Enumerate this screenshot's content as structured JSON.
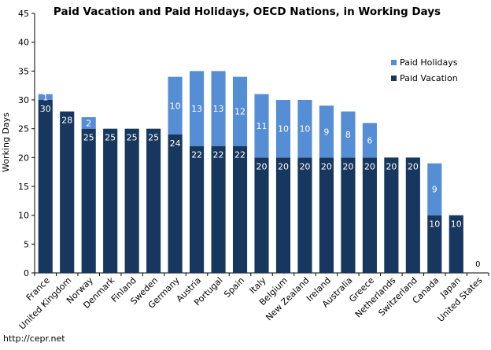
{
  "chart_data": {
    "type": "bar",
    "stacked": true,
    "title": "Paid Vacation and Paid Holidays, OECD Nations, in Working Days",
    "ylabel": "Working Days",
    "xlabel": "",
    "ylim": [
      0,
      45
    ],
    "yticks": [
      0,
      5,
      10,
      15,
      20,
      25,
      30,
      35,
      40,
      45
    ],
    "grid": false,
    "legend_position": "right",
    "categories": [
      "France",
      "United Kingdom",
      "Norway",
      "Denmark",
      "Finland",
      "Sweden",
      "Germany",
      "Austria",
      "Portugal",
      "Spain",
      "Italy",
      "Belgium",
      "New Zealand",
      "Ireland",
      "Australia",
      "Greece",
      "Netherlands",
      "Switzerland",
      "Canada",
      "Japan",
      "United States"
    ],
    "series": [
      {
        "name": "Paid Vacation",
        "color": "#17375e",
        "values": [
          30,
          28,
          25,
          25,
          25,
          25,
          24,
          22,
          22,
          22,
          20,
          20,
          20,
          20,
          20,
          20,
          20,
          20,
          10,
          10,
          0
        ],
        "labels": [
          "30",
          "28",
          "25",
          "25",
          "25",
          "25",
          "24",
          "22",
          "22",
          "22",
          "20",
          "20",
          "20",
          "20",
          "20",
          "20",
          "20",
          "20",
          "10",
          "10",
          "0"
        ]
      },
      {
        "name": "Paid Holidays",
        "color": "#558ed5",
        "values": [
          1,
          0,
          2,
          0,
          0,
          0,
          10,
          13,
          13,
          12,
          11,
          10,
          10,
          9,
          8,
          6,
          0,
          0,
          9,
          0,
          0
        ],
        "labels": [
          "1",
          "",
          "2",
          "",
          "",
          "",
          "10",
          "13",
          "13",
          "12",
          "11",
          "10",
          "10",
          "9",
          "8",
          "6",
          "",
          "",
          "9",
          "",
          ""
        ]
      }
    ],
    "legend_order": [
      "Paid Holidays",
      "Paid Vacation"
    ]
  },
  "footer": {
    "source": "http://cepr.net"
  }
}
